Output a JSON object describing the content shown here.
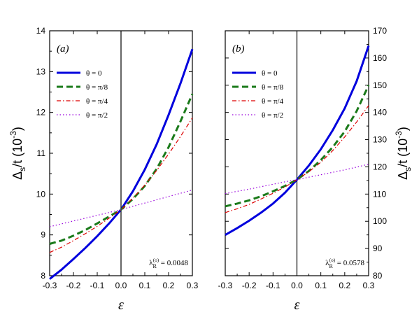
{
  "chart_data": [
    {
      "type": "line",
      "panel_label": "(a)",
      "xlabel": "ε",
      "ylabel": "Δs/t (10-3)",
      "xlim": [
        -0.3,
        0.3
      ],
      "ylim": [
        8,
        14
      ],
      "yaxis_side": "left",
      "x_ticks": [
        "-0.3",
        "-0.2",
        "-0.1",
        "0.0",
        "0.1",
        "0.2",
        "0.3"
      ],
      "y_ticks": [
        "8",
        "9",
        "10",
        "11",
        "12",
        "13",
        "14"
      ],
      "annotation": "λR(o) = 0.0048",
      "x": [
        -0.3,
        -0.25,
        -0.2,
        -0.15,
        -0.1,
        -0.05,
        0.0,
        0.05,
        0.1,
        0.15,
        0.2,
        0.25,
        0.3
      ],
      "series": [
        {
          "name": "θ = 0",
          "color": "#0000dd",
          "style": "solid",
          "values": [
            7.92,
            8.15,
            8.41,
            8.68,
            8.97,
            9.28,
            9.62,
            10.07,
            10.6,
            11.22,
            11.94,
            12.71,
            13.55
          ]
        },
        {
          "name": "θ = π/8",
          "color": "#1a7a1a",
          "style": "dashed",
          "values": [
            8.78,
            8.86,
            8.98,
            9.12,
            9.28,
            9.45,
            9.62,
            9.88,
            10.2,
            10.62,
            11.15,
            11.78,
            12.45
          ]
        },
        {
          "name": "θ = π/4",
          "color": "#dd0000",
          "style": "dashdot",
          "values": [
            8.57,
            8.7,
            8.86,
            9.03,
            9.21,
            9.41,
            9.62,
            9.9,
            10.22,
            10.58,
            10.98,
            11.41,
            11.87
          ]
        },
        {
          "name": "θ = π/2",
          "color": "#9900dd",
          "style": "dotted",
          "values": [
            9.2,
            9.27,
            9.34,
            9.41,
            9.48,
            9.55,
            9.62,
            9.7,
            9.78,
            9.86,
            9.94,
            10.02,
            10.1
          ]
        }
      ]
    },
    {
      "type": "line",
      "panel_label": "(b)",
      "xlabel": "ε",
      "ylabel": "Δs/t (10-3)",
      "xlim": [
        -0.3,
        0.3
      ],
      "ylim": [
        80,
        170
      ],
      "yaxis_side": "right",
      "x_ticks": [
        "-0.3",
        "-0.2",
        "-0.1",
        "0.0",
        "0.1",
        "0.2",
        "0.3"
      ],
      "y_ticks": [
        "80",
        "90",
        "100",
        "110",
        "120",
        "130",
        "140",
        "150",
        "160",
        "170"
      ],
      "annotation": "λR(o) = 0.0578",
      "x": [
        -0.3,
        -0.25,
        -0.2,
        -0.15,
        -0.1,
        -0.05,
        0.0,
        0.05,
        0.1,
        0.15,
        0.2,
        0.25,
        0.3
      ],
      "series": [
        {
          "name": "θ = 0",
          "color": "#0000dd",
          "style": "solid",
          "values": [
            95,
            97.5,
            100.2,
            103.2,
            106.5,
            110.5,
            115.3,
            120.5,
            126.5,
            133.5,
            141.5,
            151.5,
            164.5
          ]
        },
        {
          "name": "θ = π/8",
          "color": "#1a7a1a",
          "style": "dashed",
          "values": [
            105.5,
            106.5,
            107.7,
            109.2,
            111.0,
            113.0,
            115.3,
            118.5,
            122.5,
            127.3,
            133.0,
            140.5,
            150.0
          ]
        },
        {
          "name": "θ = π/4",
          "color": "#dd0000",
          "style": "dashdot",
          "values": [
            103.2,
            104.6,
            106.2,
            108.2,
            110.3,
            112.6,
            115.3,
            118.2,
            121.7,
            126.0,
            131.0,
            136.5,
            142.5
          ]
        },
        {
          "name": "θ = π/2",
          "color": "#9900dd",
          "style": "dotted",
          "values": [
            110.2,
            111.0,
            111.8,
            112.7,
            113.6,
            114.5,
            115.3,
            116.2,
            117.1,
            118.0,
            118.9,
            119.9,
            121.0
          ]
        }
      ]
    }
  ]
}
